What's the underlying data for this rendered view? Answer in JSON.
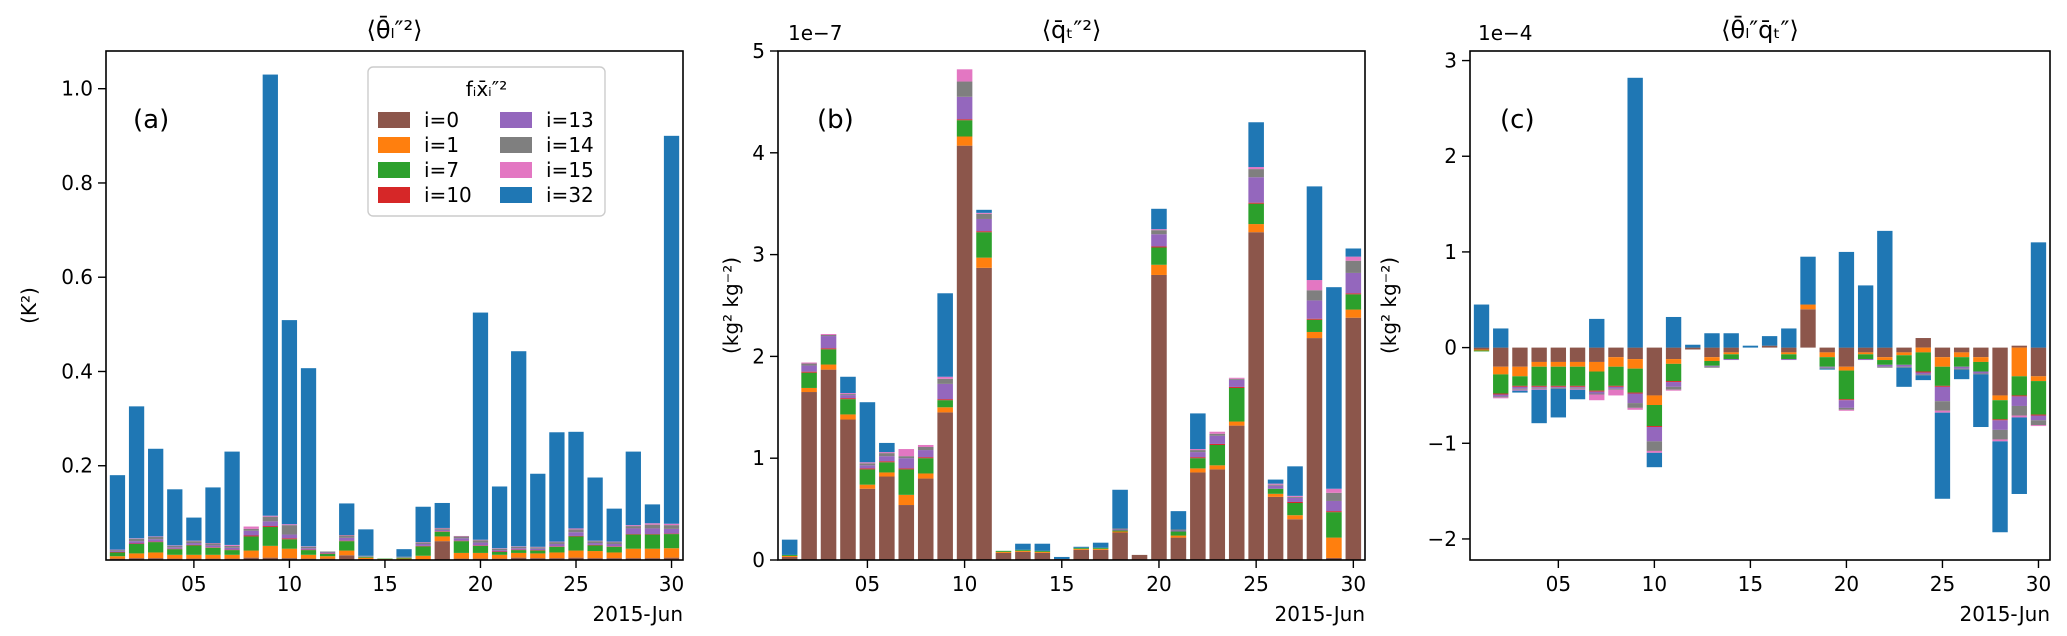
{
  "figure": {
    "date_label": "2015-Jun"
  },
  "components": [
    {
      "name": "i=0",
      "color": "#8c564b"
    },
    {
      "name": "i=1",
      "color": "#ff7f0e"
    },
    {
      "name": "i=7",
      "color": "#2ca02c"
    },
    {
      "name": "i=10",
      "color": "#d62728"
    },
    {
      "name": "i=13",
      "color": "#9467bd"
    },
    {
      "name": "i=14",
      "color": "#7f7f7f"
    },
    {
      "name": "i=15",
      "color": "#e377c2"
    },
    {
      "name": "i=32",
      "color": "#1f77b4"
    }
  ],
  "chart_data": [
    {
      "type": "bar",
      "stacked": true,
      "title": "⟨θ̄ₗ″²⟩",
      "panel_label": "(a)",
      "ylabel": "(K²)",
      "xlabel": "2015-Jun",
      "ylim": [
        0,
        1.08
      ],
      "yticks": [
        0.2,
        0.4,
        0.6,
        0.8,
        1.0
      ],
      "ytick_labels": [
        "0.2",
        "0.4",
        "0.6",
        "0.8",
        "1.0"
      ],
      "xticks": [
        5,
        10,
        15,
        20,
        25,
        30
      ],
      "xtick_labels": [
        "05",
        "10",
        "15",
        "20",
        "25",
        "30"
      ],
      "legend": {
        "title": "fᵢx̄ᵢ″²",
        "placement": "upper-center",
        "columns": 2
      },
      "days": [
        1,
        2,
        3,
        4,
        5,
        6,
        7,
        8,
        9,
        10,
        11,
        12,
        13,
        14,
        15,
        16,
        17,
        18,
        19,
        20,
        21,
        22,
        23,
        24,
        25,
        26,
        27,
        28,
        29,
        30
      ],
      "series": [
        {
          "name": "i=0",
          "values": [
            0.003,
            0.004,
            0.004,
            0.003,
            0.003,
            0.003,
            0.003,
            0.005,
            0.005,
            0.004,
            0.003,
            0.003,
            0.01,
            0.002,
            0.001,
            0.001,
            0.001,
            0.04,
            0.003,
            0.003,
            0.003,
            0.005,
            0.004,
            0.004,
            0.005,
            0.004,
            0.004,
            0.004,
            0.004,
            0.005
          ]
        },
        {
          "name": "i=1",
          "values": [
            0.005,
            0.01,
            0.012,
            0.008,
            0.008,
            0.008,
            0.008,
            0.015,
            0.025,
            0.02,
            0.008,
            0.005,
            0.01,
            0.003,
            0.001,
            0.002,
            0.008,
            0.01,
            0.012,
            0.012,
            0.008,
            0.01,
            0.01,
            0.012,
            0.015,
            0.015,
            0.012,
            0.02,
            0.02,
            0.02
          ]
        },
        {
          "name": "i=7",
          "values": [
            0.008,
            0.02,
            0.022,
            0.012,
            0.02,
            0.015,
            0.01,
            0.03,
            0.04,
            0.02,
            0.01,
            0.005,
            0.02,
            0.002,
            0.001,
            0.002,
            0.02,
            0.01,
            0.025,
            0.015,
            0.006,
            0.006,
            0.006,
            0.012,
            0.03,
            0.012,
            0.012,
            0.03,
            0.03,
            0.03
          ]
        },
        {
          "name": "i=10",
          "values": [
            0.001,
            0.001,
            0.001,
            0.001,
            0.001,
            0.001,
            0.001,
            0.002,
            0.002,
            0.002,
            0.001,
            0.001,
            0.001,
            0.0,
            0.0,
            0.0,
            0.001,
            0.001,
            0.001,
            0.001,
            0.001,
            0.001,
            0.001,
            0.001,
            0.001,
            0.001,
            0.001,
            0.001,
            0.001,
            0.001
          ]
        },
        {
          "name": "i=13",
          "values": [
            0.002,
            0.005,
            0.005,
            0.003,
            0.004,
            0.004,
            0.004,
            0.01,
            0.01,
            0.008,
            0.003,
            0.002,
            0.006,
            0.001,
            0.0,
            0.001,
            0.004,
            0.003,
            0.005,
            0.006,
            0.003,
            0.003,
            0.003,
            0.005,
            0.008,
            0.004,
            0.005,
            0.012,
            0.012,
            0.01
          ]
        },
        {
          "name": "i=14",
          "values": [
            0.002,
            0.005,
            0.005,
            0.003,
            0.004,
            0.004,
            0.004,
            0.004,
            0.01,
            0.02,
            0.003,
            0.002,
            0.005,
            0.001,
            0.0,
            0.001,
            0.003,
            0.003,
            0.004,
            0.005,
            0.003,
            0.003,
            0.003,
            0.004,
            0.006,
            0.004,
            0.004,
            0.005,
            0.008,
            0.008
          ]
        },
        {
          "name": "i=15",
          "values": [
            0.001,
            0.001,
            0.001,
            0.001,
            0.001,
            0.001,
            0.002,
            0.005,
            0.002,
            0.002,
            0.001,
            0.0,
            0.001,
            0.0,
            0.0,
            0.0,
            0.001,
            0.001,
            0.001,
            0.001,
            0.001,
            0.001,
            0.001,
            0.001,
            0.002,
            0.001,
            0.001,
            0.002,
            0.003,
            0.003
          ]
        },
        {
          "name": "i=32",
          "values": [
            0.158,
            0.28,
            0.186,
            0.119,
            0.049,
            0.118,
            0.198,
            0.0,
            0.936,
            0.433,
            0.378,
            0.0,
            0.067,
            0.056,
            0.0,
            0.016,
            0.075,
            0.053,
            0.0,
            0.482,
            0.131,
            0.414,
            0.155,
            0.232,
            0.205,
            0.134,
            0.07,
            0.156,
            0.04,
            0.823
          ]
        }
      ]
    },
    {
      "type": "bar",
      "stacked": true,
      "title": "⟨q̄ₜ″²⟩",
      "panel_label": "(b)",
      "ylabel": "(kg² kg⁻²)",
      "xlabel": "2015-Jun",
      "scale_label": "1e−7",
      "ylim": [
        0,
        5.0
      ],
      "yticks": [
        0,
        1,
        2,
        3,
        4,
        5
      ],
      "ytick_labels": [
        "0",
        "1",
        "2",
        "3",
        "4",
        "5"
      ],
      "xticks": [
        5,
        10,
        15,
        20,
        25,
        30
      ],
      "xtick_labels": [
        "05",
        "10",
        "15",
        "20",
        "25",
        "30"
      ],
      "days": [
        1,
        2,
        3,
        4,
        5,
        6,
        7,
        8,
        9,
        10,
        11,
        12,
        13,
        14,
        15,
        16,
        17,
        18,
        19,
        20,
        21,
        22,
        23,
        24,
        25,
        26,
        27,
        28,
        29,
        30
      ],
      "series": [
        {
          "name": "i=0",
          "values": [
            0.03,
            1.65,
            1.87,
            1.38,
            0.7,
            0.82,
            0.54,
            0.8,
            1.45,
            4.07,
            2.87,
            0.07,
            0.08,
            0.07,
            0.01,
            0.1,
            0.1,
            0.27,
            0.05,
            2.8,
            0.22,
            0.86,
            0.89,
            1.32,
            3.22,
            0.62,
            0.4,
            2.18,
            0.02,
            2.38
          ]
        },
        {
          "name": "i=1",
          "values": [
            0.01,
            0.04,
            0.05,
            0.05,
            0.04,
            0.04,
            0.1,
            0.05,
            0.05,
            0.09,
            0.1,
            0.01,
            0.01,
            0.01,
            0.0,
            0.01,
            0.01,
            0.01,
            0.0,
            0.1,
            0.02,
            0.04,
            0.04,
            0.04,
            0.08,
            0.03,
            0.04,
            0.06,
            0.2,
            0.08
          ]
        },
        {
          "name": "i=7",
          "values": [
            0.01,
            0.15,
            0.15,
            0.15,
            0.15,
            0.1,
            0.25,
            0.15,
            0.07,
            0.16,
            0.25,
            0.01,
            0.01,
            0.01,
            0.0,
            0.01,
            0.01,
            0.01,
            0.0,
            0.17,
            0.04,
            0.1,
            0.2,
            0.33,
            0.2,
            0.05,
            0.12,
            0.12,
            0.25,
            0.15
          ]
        },
        {
          "name": "i=10",
          "values": [
            0.0,
            0.01,
            0.01,
            0.01,
            0.01,
            0.01,
            0.01,
            0.01,
            0.01,
            0.01,
            0.01,
            0.0,
            0.0,
            0.0,
            0.0,
            0.0,
            0.0,
            0.0,
            0.0,
            0.01,
            0.0,
            0.01,
            0.01,
            0.01,
            0.01,
            0.0,
            0.01,
            0.01,
            0.01,
            0.01
          ]
        },
        {
          "name": "i=13",
          "values": [
            0.0,
            0.06,
            0.12,
            0.03,
            0.03,
            0.05,
            0.1,
            0.07,
            0.15,
            0.22,
            0.12,
            0.0,
            0.0,
            0.0,
            0.0,
            0.0,
            0.0,
            0.01,
            0.0,
            0.12,
            0.01,
            0.05,
            0.08,
            0.07,
            0.25,
            0.03,
            0.04,
            0.18,
            0.1,
            0.2
          ]
        },
        {
          "name": "i=14",
          "values": [
            0.0,
            0.02,
            0.01,
            0.01,
            0.02,
            0.03,
            0.02,
            0.03,
            0.05,
            0.15,
            0.05,
            0.0,
            0.0,
            0.0,
            0.0,
            0.0,
            0.0,
            0.01,
            0.0,
            0.04,
            0.01,
            0.02,
            0.02,
            0.01,
            0.08,
            0.01,
            0.01,
            0.1,
            0.08,
            0.12
          ]
        },
        {
          "name": "i=15",
          "values": [
            0.0,
            0.01,
            0.01,
            0.01,
            0.01,
            0.01,
            0.07,
            0.02,
            0.02,
            0.12,
            0.01,
            0.0,
            0.0,
            0.0,
            0.0,
            0.0,
            0.0,
            0.0,
            0.0,
            0.01,
            0.0,
            0.01,
            0.02,
            0.01,
            0.02,
            0.01,
            0.01,
            0.1,
            0.04,
            0.04
          ]
        },
        {
          "name": "i=32",
          "values": [
            0.15,
            0.0,
            0.0,
            0.16,
            0.59,
            0.09,
            0.0,
            0.0,
            0.82,
            0.0,
            0.03,
            0.0,
            0.06,
            0.07,
            0.02,
            0.01,
            0.05,
            0.38,
            0.0,
            0.2,
            0.18,
            0.35,
            0.0,
            0.0,
            0.44,
            0.04,
            0.29,
            0.92,
            1.98,
            0.08
          ]
        }
      ]
    },
    {
      "type": "bar",
      "stacked": true,
      "title": "⟨θ̄ₗ″q̄ₜ″⟩",
      "panel_label": "(c)",
      "ylabel": "(kg² kg⁻²)",
      "xlabel": "2015-Jun",
      "scale_label": "1e−4",
      "ylim": [
        -2.22,
        3.1
      ],
      "yticks": [
        -2,
        -1,
        0,
        1,
        2,
        3
      ],
      "ytick_labels": [
        "−2",
        "−1",
        "0",
        "1",
        "2",
        "3"
      ],
      "xticks": [
        5,
        10,
        15,
        20,
        25,
        30
      ],
      "xtick_labels": [
        "05",
        "10",
        "15",
        "20",
        "25",
        "30"
      ],
      "days": [
        1,
        2,
        3,
        4,
        5,
        6,
        7,
        8,
        9,
        10,
        11,
        12,
        13,
        14,
        15,
        16,
        17,
        18,
        19,
        20,
        21,
        22,
        23,
        24,
        25,
        26,
        27,
        28,
        29,
        30
      ],
      "series": [
        {
          "name": "i=0",
          "values": [
            -0.02,
            -0.2,
            -0.2,
            -0.15,
            -0.15,
            -0.15,
            -0.15,
            -0.1,
            -0.12,
            -0.5,
            -0.12,
            -0.02,
            -0.1,
            -0.05,
            0.0,
            0.02,
            -0.05,
            0.4,
            -0.05,
            -0.2,
            -0.05,
            -0.1,
            -0.05,
            0.1,
            -0.1,
            -0.05,
            -0.1,
            -0.5,
            0.02,
            -0.3
          ]
        },
        {
          "name": "i=1",
          "values": [
            -0.01,
            -0.08,
            -0.1,
            -0.05,
            -0.05,
            -0.05,
            -0.1,
            -0.1,
            -0.1,
            -0.1,
            -0.05,
            0.0,
            -0.04,
            -0.02,
            0.0,
            0.0,
            -0.02,
            0.05,
            -0.05,
            -0.04,
            -0.02,
            -0.03,
            -0.03,
            -0.05,
            -0.1,
            -0.05,
            -0.05,
            -0.05,
            -0.3,
            -0.05
          ]
        },
        {
          "name": "i=7",
          "values": [
            -0.01,
            -0.2,
            -0.1,
            -0.2,
            -0.2,
            -0.2,
            -0.2,
            -0.2,
            -0.25,
            -0.22,
            -0.18,
            0.0,
            -0.05,
            -0.05,
            0.0,
            0.0,
            -0.05,
            0.0,
            -0.1,
            -0.3,
            -0.05,
            -0.05,
            -0.1,
            -0.2,
            -0.2,
            -0.1,
            -0.1,
            -0.2,
            -0.2,
            -0.35
          ]
        },
        {
          "name": "i=10",
          "values": [
            0.0,
            -0.01,
            -0.01,
            -0.01,
            -0.01,
            -0.01,
            -0.01,
            -0.01,
            -0.01,
            -0.01,
            -0.01,
            0.0,
            0.0,
            0.0,
            0.0,
            0.0,
            0.0,
            0.0,
            0.0,
            -0.01,
            0.0,
            0.0,
            0.0,
            -0.01,
            -0.01,
            0.0,
            0.0,
            -0.01,
            -0.01,
            -0.01
          ]
        },
        {
          "name": "i=13",
          "values": [
            0.0,
            -0.02,
            -0.02,
            -0.01,
            -0.01,
            -0.01,
            -0.02,
            -0.02,
            -0.1,
            -0.15,
            -0.05,
            0.0,
            -0.01,
            -0.01,
            0.0,
            0.0,
            -0.01,
            0.0,
            -0.01,
            -0.08,
            -0.01,
            -0.02,
            -0.02,
            -0.02,
            -0.15,
            -0.02,
            -0.02,
            -0.1,
            -0.1,
            -0.05
          ]
        },
        {
          "name": "i=14",
          "values": [
            0.0,
            -0.01,
            -0.01,
            -0.01,
            -0.01,
            -0.01,
            -0.01,
            -0.01,
            -0.05,
            -0.1,
            -0.03,
            0.0,
            -0.01,
            0.0,
            0.0,
            0.0,
            0.0,
            0.0,
            -0.01,
            -0.02,
            0.0,
            -0.01,
            -0.01,
            -0.01,
            -0.1,
            -0.01,
            -0.01,
            -0.1,
            -0.1,
            -0.05
          ]
        },
        {
          "name": "i=15",
          "values": [
            0.0,
            -0.01,
            -0.01,
            -0.01,
            0.0,
            -0.01,
            -0.06,
            -0.06,
            -0.02,
            -0.02,
            -0.01,
            0.0,
            0.0,
            0.0,
            0.0,
            0.0,
            0.0,
            0.0,
            0.0,
            -0.01,
            0.0,
            0.0,
            0.0,
            0.0,
            -0.02,
            0.0,
            0.0,
            -0.02,
            -0.02,
            -0.01
          ]
        },
        {
          "name": "i=32",
          "values": [
            0.45,
            0.2,
            -0.02,
            -0.35,
            -0.3,
            -0.1,
            0.3,
            0.0,
            2.82,
            -0.15,
            0.32,
            0.03,
            0.15,
            0.15,
            0.02,
            0.1,
            0.2,
            0.5,
            -0.01,
            1.0,
            0.65,
            1.22,
            -0.2,
            -0.05,
            -0.9,
            -0.1,
            -0.55,
            -0.95,
            -0.8,
            1.1
          ]
        }
      ]
    }
  ]
}
